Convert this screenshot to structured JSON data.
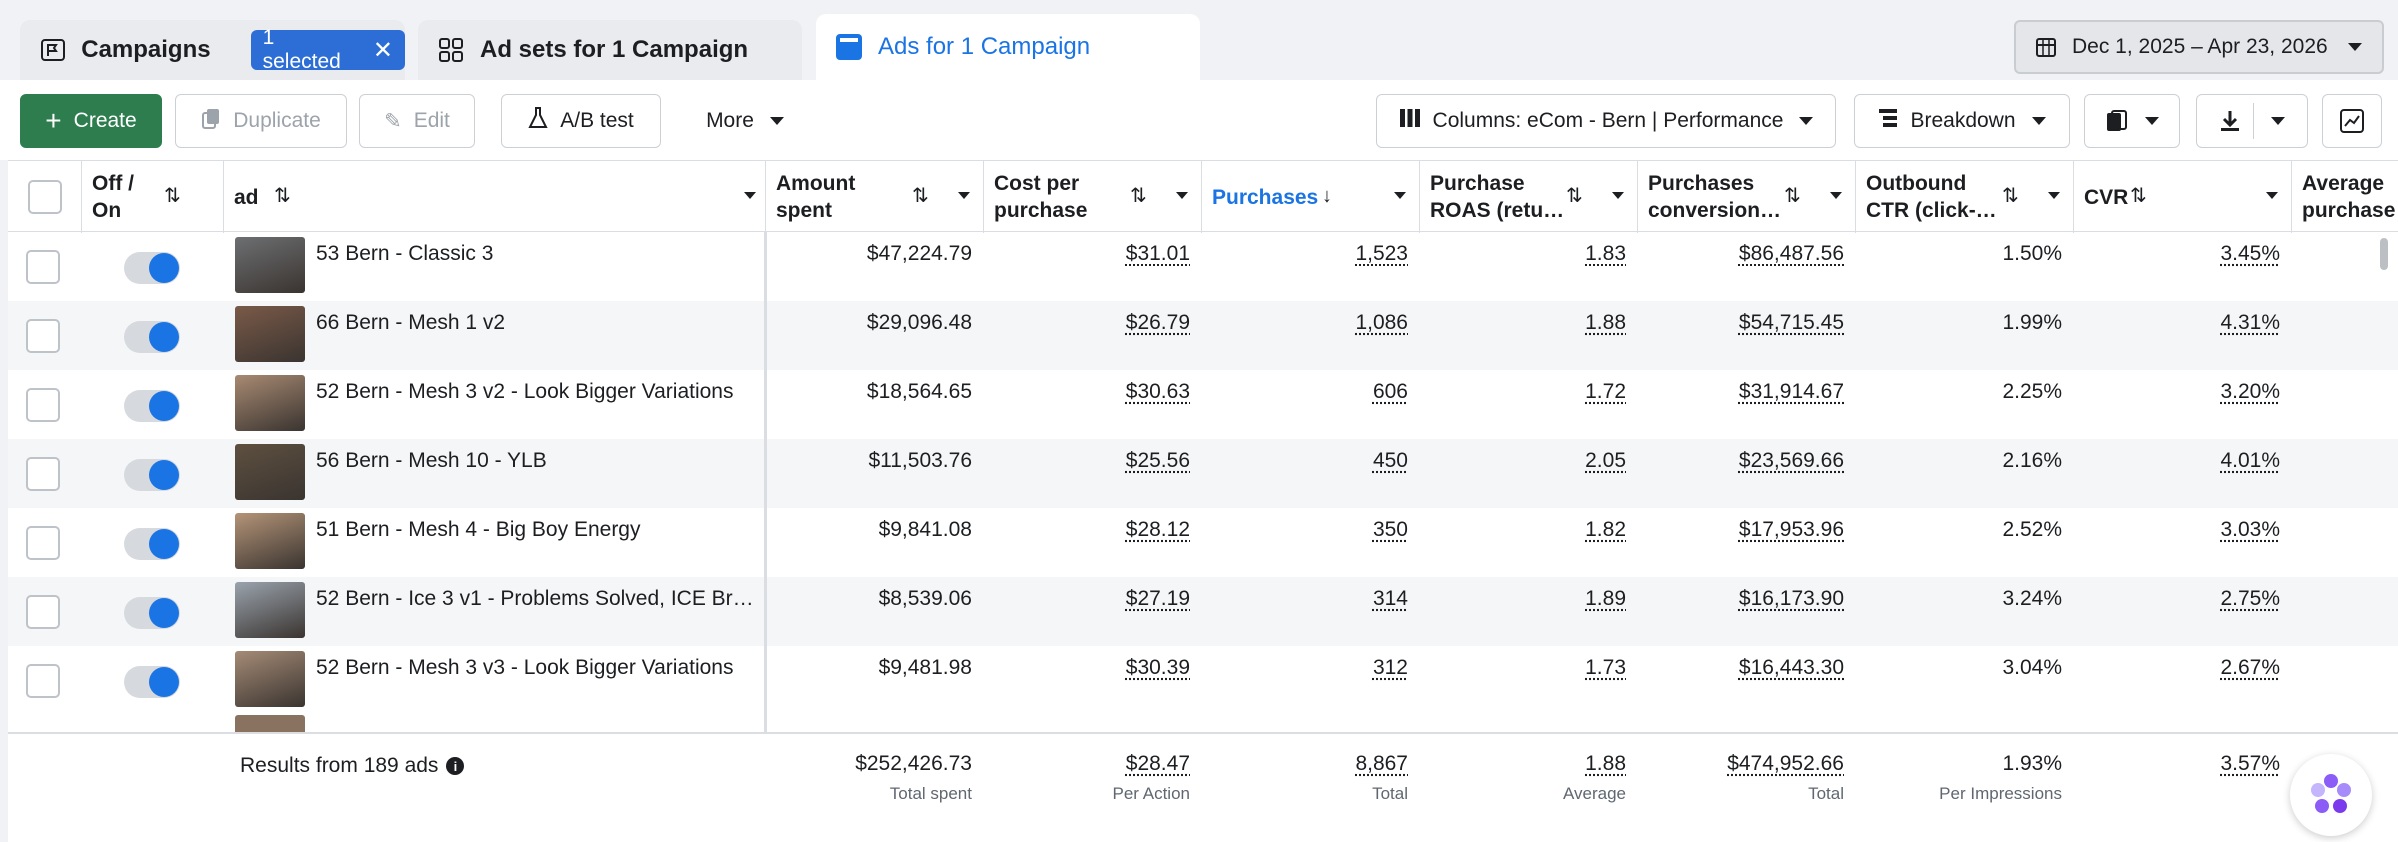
{
  "tabs": {
    "campaigns": "Campaigns",
    "selected_badge": "1 selected",
    "adsets": "Ad sets for 1 Campaign",
    "ads": "Ads for 1 Campaign"
  },
  "date_range": "Dec 1, 2025 – Apr 23, 2026",
  "toolbar": {
    "create": "Create",
    "duplicate": "Duplicate",
    "edit": "Edit",
    "ab_test": "A/B test",
    "more": "More",
    "columns": "Columns: eCom - Bern | Performance",
    "breakdown": "Breakdown"
  },
  "headers": {
    "off_on": [
      "Off /",
      "On"
    ],
    "ad": "ad",
    "amount_spent": [
      "Amount",
      "spent"
    ],
    "cost_per_purchase": [
      "Cost per",
      "purchase"
    ],
    "purchases": "Purchases",
    "roas": [
      "Purchase",
      "ROAS (retu…"
    ],
    "conversion": [
      "Purchases",
      "conversion…"
    ],
    "ctr": [
      "Outbound",
      "CTR (click-…"
    ],
    "cvr": "CVR",
    "avg": [
      "Average",
      "purchase"
    ]
  },
  "rows": [
    {
      "name": "53 Bern - Classic 3",
      "spent": "$47,224.79",
      "cpp": "$31.01",
      "purchases": "1,523",
      "roas": "1.83",
      "conv": "$86,487.56",
      "ctr": "1.50%",
      "cvr": "3.45%",
      "thumb": "#6d6f72"
    },
    {
      "name": "66 Bern - Mesh 1 v2",
      "spent": "$29,096.48",
      "cpp": "$26.79",
      "purchases": "1,086",
      "roas": "1.88",
      "conv": "$54,715.45",
      "ctr": "1.99%",
      "cvr": "4.31%",
      "thumb": "#7a5a48"
    },
    {
      "name": "52 Bern - Mesh 3 v2 - Look Bigger Variations",
      "spent": "$18,564.65",
      "cpp": "$30.63",
      "purchases": "606",
      "roas": "1.72",
      "conv": "$31,914.67",
      "ctr": "2.25%",
      "cvr": "3.20%",
      "thumb": "#a88a72"
    },
    {
      "name": "56 Bern - Mesh 10 - YLB",
      "spent": "$11,503.76",
      "cpp": "$25.56",
      "purchases": "450",
      "roas": "2.05",
      "conv": "$23,569.66",
      "ctr": "2.16%",
      "cvr": "4.01%",
      "thumb": "#5e5040"
    },
    {
      "name": "51 Bern - Mesh 4 - Big Boy Energy",
      "spent": "$9,841.08",
      "cpp": "$28.12",
      "purchases": "350",
      "roas": "1.82",
      "conv": "$17,953.96",
      "ctr": "2.52%",
      "cvr": "3.03%",
      "thumb": "#b49478"
    },
    {
      "name": "52 Bern - Ice 3 v1 - Problems Solved, ICE Br…",
      "spent": "$8,539.06",
      "cpp": "$27.19",
      "purchases": "314",
      "roas": "1.89",
      "conv": "$16,173.90",
      "ctr": "3.24%",
      "cvr": "2.75%",
      "thumb": "#9aa3ad"
    },
    {
      "name": "52 Bern - Mesh 3 v3 - Look Bigger Variations",
      "spent": "$9,481.98",
      "cpp": "$30.39",
      "purchases": "312",
      "roas": "1.73",
      "conv": "$16,443.30",
      "ctr": "3.04%",
      "cvr": "2.67%",
      "thumb": "#a58b76"
    }
  ],
  "footer": {
    "results": "Results from 189 ads",
    "spent": "$252,426.73",
    "spent_sub": "Total spent",
    "cpp": "$28.47",
    "cpp_sub": "Per Action",
    "purchases": "8,867",
    "purchases_sub": "Total",
    "roas": "1.88",
    "roas_sub": "Average",
    "conv": "$474,952.66",
    "conv_sub": "Total",
    "ctr": "1.93%",
    "ctr_sub": "Per Impressions",
    "cvr": "3.57%"
  },
  "colors": {
    "accent": "#1b74e4",
    "create": "#2e7d4f",
    "badge": "#2c6ed5"
  }
}
